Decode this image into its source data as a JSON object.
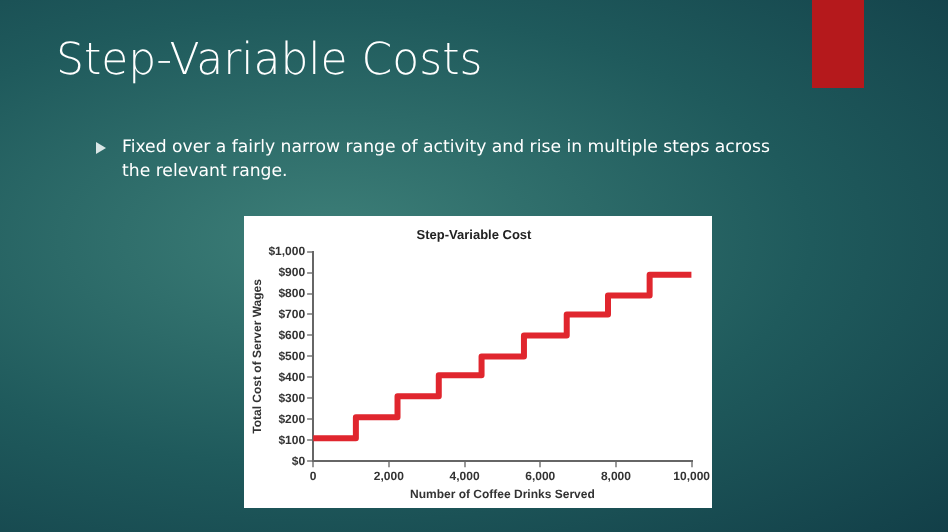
{
  "chart_data": {
    "type": "step",
    "title": "Step-Variable Cost",
    "xlabel": "Number of Coffee Drinks Served",
    "ylabel": "Total Cost of Server Wages",
    "annotations": [
      "Step-Variable Costs",
      "Fixed over a fairly narrow range of activity and rise in multiple steps across the relevant range."
    ],
    "x": [
      0,
      1130,
      2230,
      3320,
      4450,
      5570,
      6700,
      7790,
      8890,
      10000
    ],
    "series": [
      {
        "color": "#e0262e",
        "values": [
          110,
          210,
          310,
          410,
          500,
          600,
          700,
          790,
          890,
          890
        ]
      }
    ],
    "xlim": [
      0,
      10000
    ],
    "xticks": [
      0,
      {
        "value": 2000,
        "label": "2,000"
      },
      {
        "value": 4000,
        "label": "4,000"
      },
      {
        "value": 6000,
        "label": "6,000"
      },
      {
        "value": 8000,
        "label": "8,000"
      },
      {
        "value": 10000,
        "label": "10,000"
      }
    ],
    "ylim": [
      0,
      1000
    ],
    "yticks": [
      {
        "value": 0,
        "label": "$0"
      },
      {
        "value": 100,
        "label": "$100"
      },
      {
        "value": 200,
        "label": "$200"
      },
      {
        "value": 300,
        "label": "$300"
      },
      {
        "value": 400,
        "label": "$400"
      },
      {
        "value": 500,
        "label": "$500"
      },
      {
        "value": 600,
        "label": "$600"
      },
      {
        "value": 700,
        "label": "$700"
      },
      {
        "value": 800,
        "label": "$800"
      },
      {
        "value": 900,
        "label": "$900"
      },
      {
        "value": 1000,
        "label": "$1,000"
      }
    ],
    "grid": false,
    "legend": false
  }
}
